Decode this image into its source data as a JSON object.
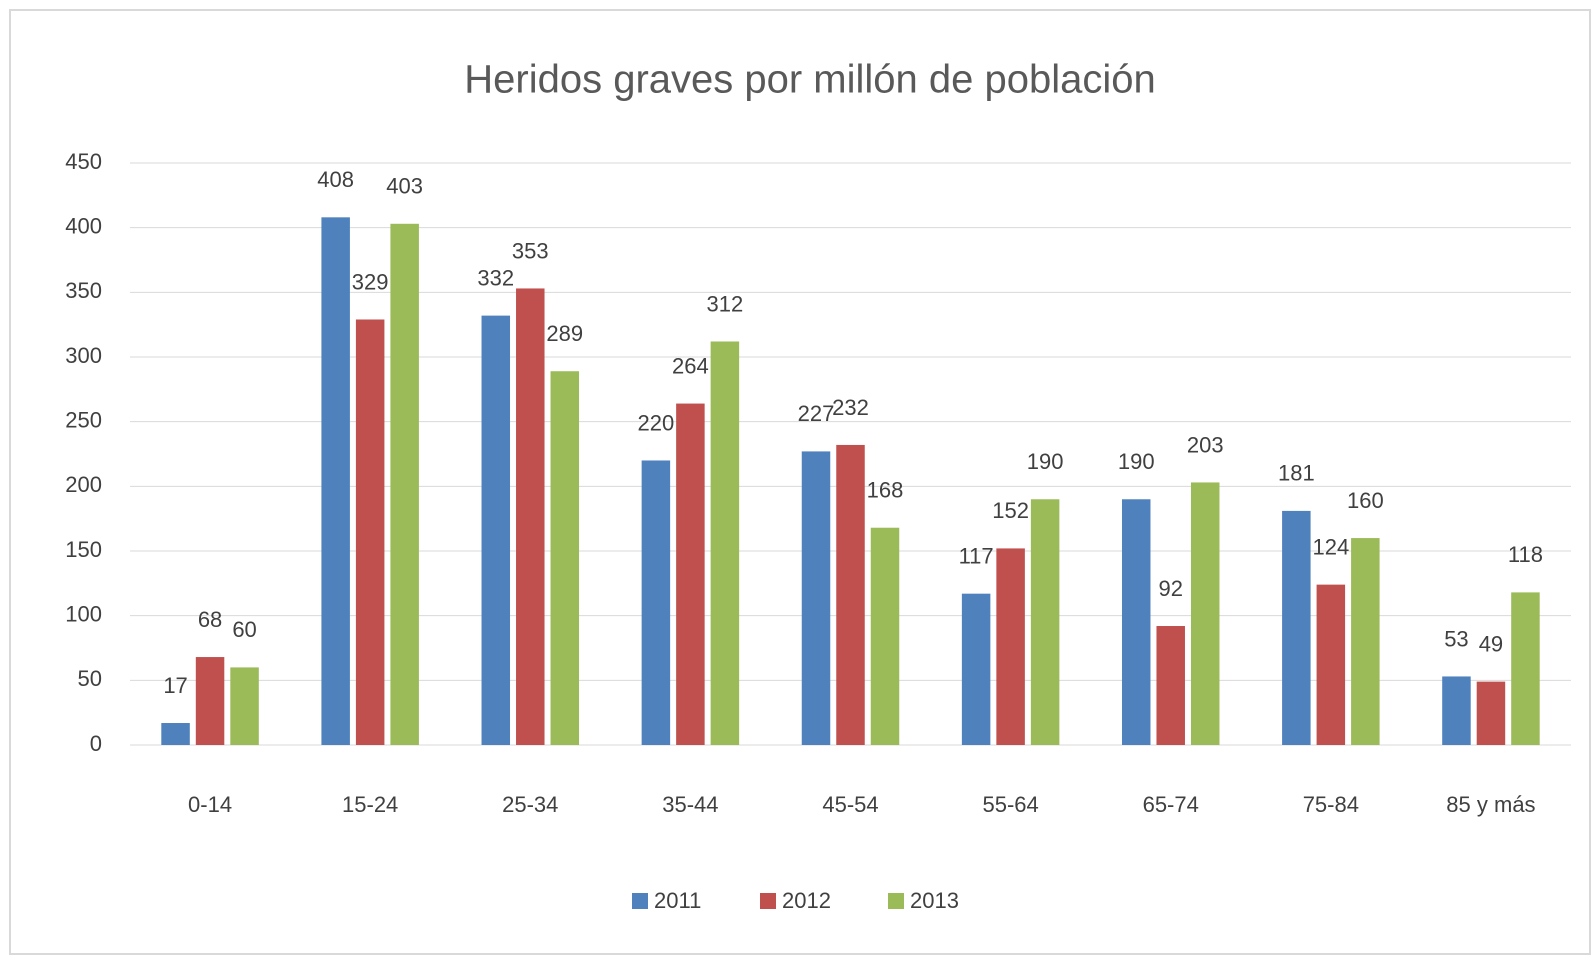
{
  "chart_data": {
    "type": "bar",
    "title": "Heridos graves por millón de población",
    "categories": [
      "0-14",
      "15-24",
      "25-34",
      "35-44",
      "45-54",
      "55-64",
      "65-74",
      "75-84",
      "85 y más"
    ],
    "series": [
      {
        "name": "2011",
        "color": "#4f81bd",
        "values": [
          17,
          408,
          332,
          220,
          227,
          117,
          190,
          181,
          53
        ]
      },
      {
        "name": "2012",
        "color": "#c0504d",
        "values": [
          68,
          329,
          353,
          264,
          232,
          152,
          92,
          124,
          49
        ]
      },
      {
        "name": "2013",
        "color": "#9bbb59",
        "values": [
          60,
          403,
          289,
          312,
          168,
          190,
          203,
          160,
          118
        ]
      }
    ],
    "ylim": [
      0,
      450
    ],
    "yticks": [
      0,
      50,
      100,
      150,
      200,
      250,
      300,
      350,
      400,
      450
    ],
    "grid": true,
    "legend": "bottom"
  }
}
